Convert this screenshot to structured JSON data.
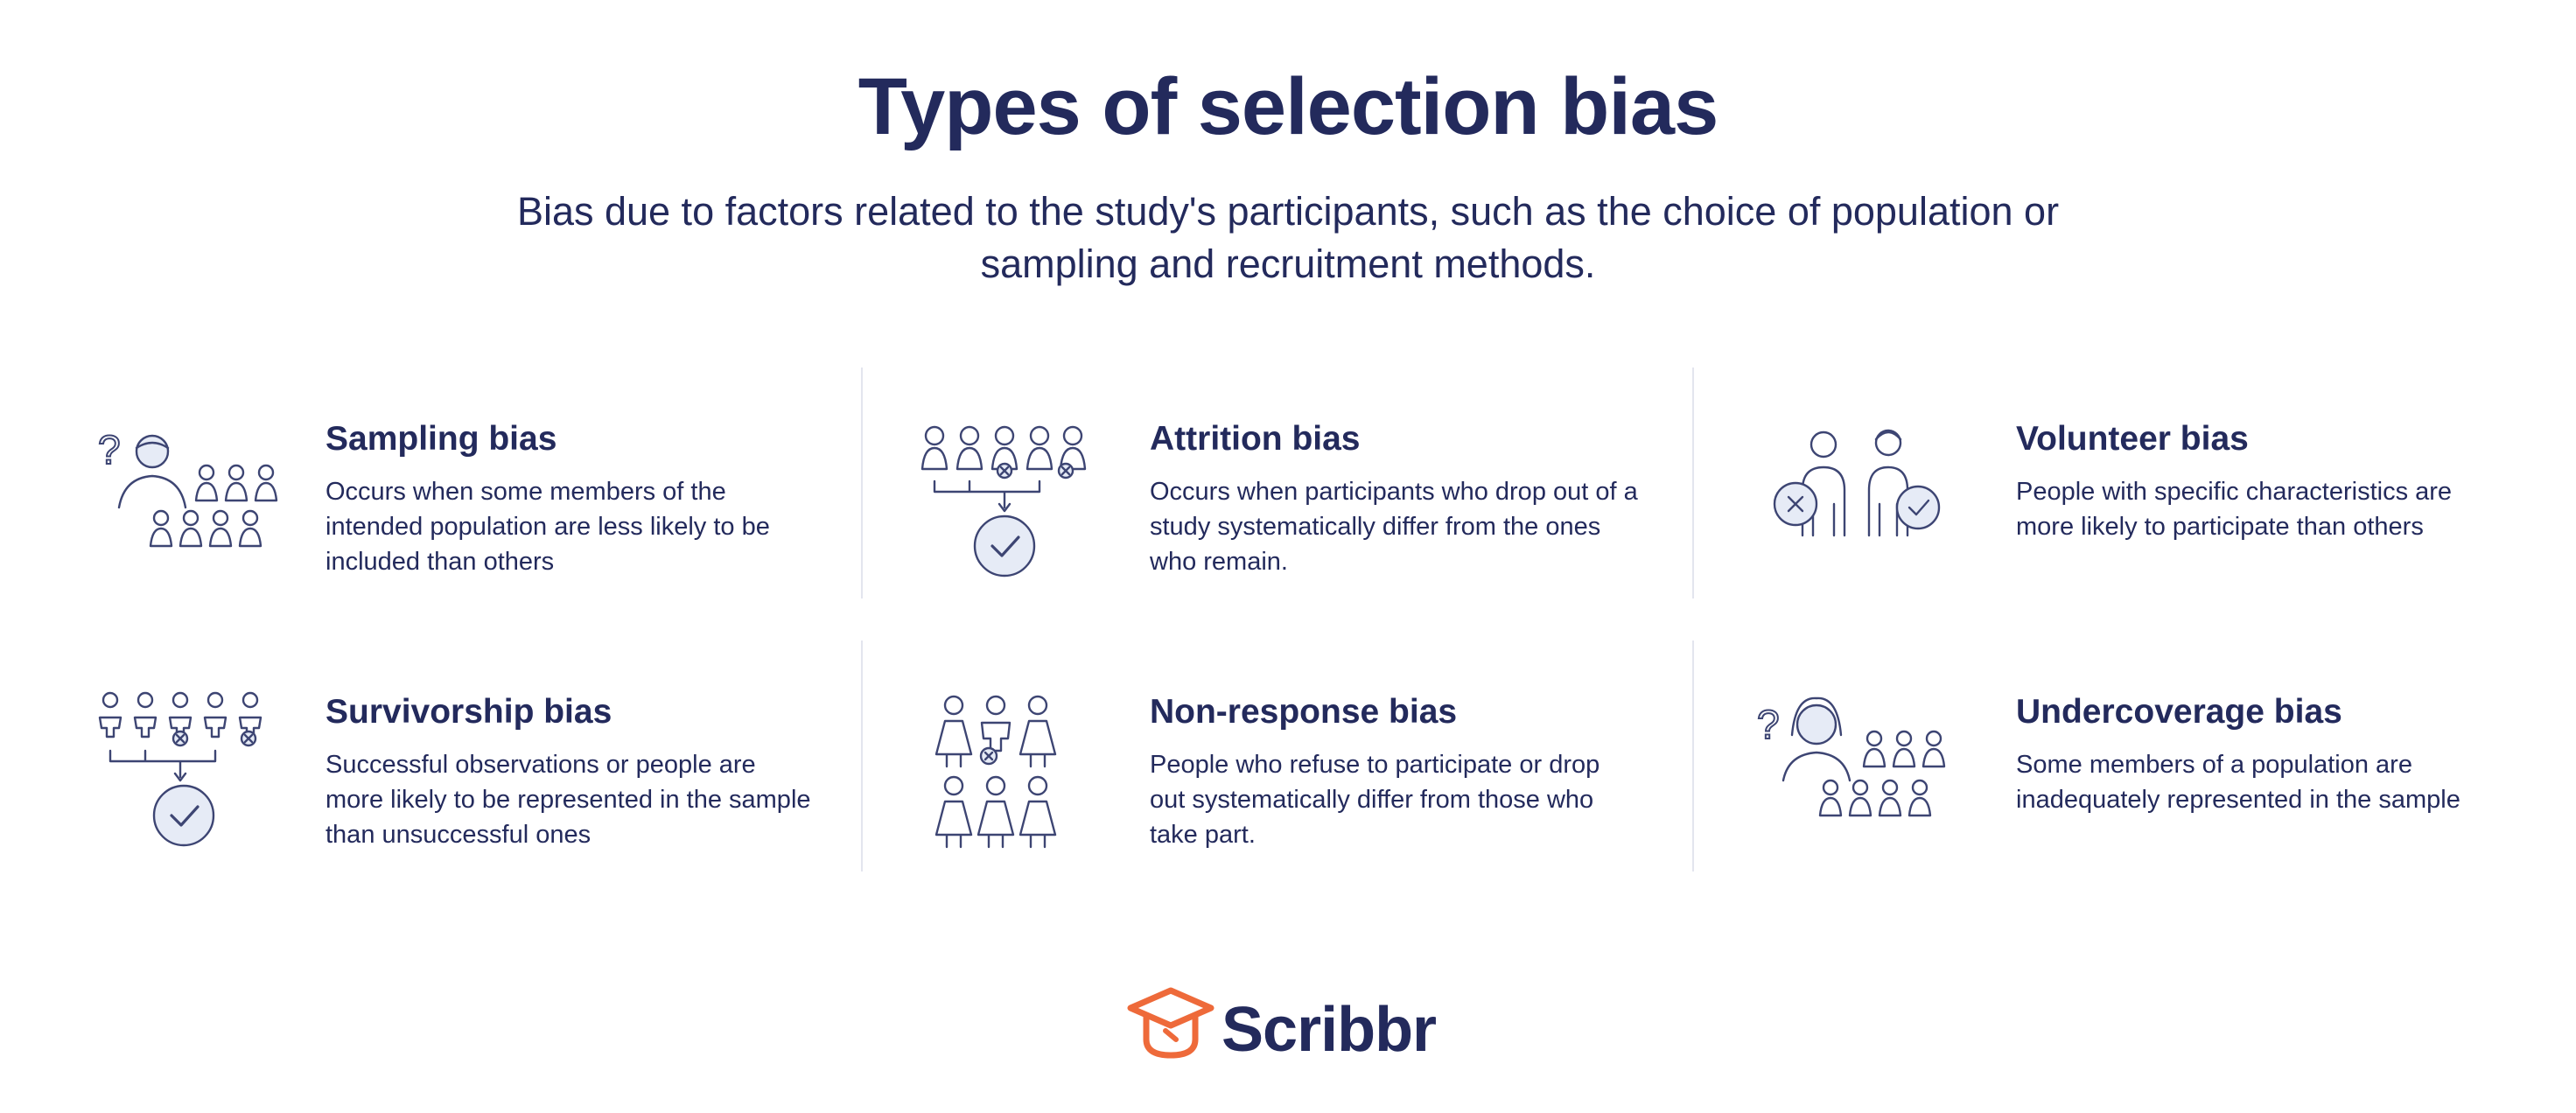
{
  "page": {
    "title": "Types of selection bias",
    "subtitle": "Bias due to factors related to the study's participants, such as the choice of population or sampling and recruitment methods."
  },
  "cards": [
    {
      "heading": "Sampling bias",
      "description": "Occurs when some members of the intended population are less likely to be included than others",
      "icon": "sampling-icon"
    },
    {
      "heading": "Attrition bias",
      "description": "Occurs when participants who drop out of a study systematically differ from the ones who remain.",
      "icon": "attrition-icon"
    },
    {
      "heading": "Volunteer bias",
      "description": "People with specific characteristics are more likely to participate than others",
      "icon": "volunteer-icon"
    },
    {
      "heading": "Survivorship bias",
      "description": "Successful observations or people are more likely to be represented in the sample than unsuccessful ones",
      "icon": "survivorship-icon"
    },
    {
      "heading": "Non-response bias",
      "description": "People who refuse to participate or drop out systematically differ from those who take part.",
      "icon": "non-response-icon"
    },
    {
      "heading": "Undercoverage bias",
      "description": "Some members of a population are inadequately represented in the sample",
      "icon": "undercoverage-icon"
    }
  ],
  "logo": {
    "text": "Scribbr",
    "icon": "graduation-cap-icon",
    "accent_color": "#ee6a3a"
  },
  "colors": {
    "text": "#232a5c",
    "divider": "#e3e5ee",
    "icon_fill": "#e6ebf6"
  }
}
